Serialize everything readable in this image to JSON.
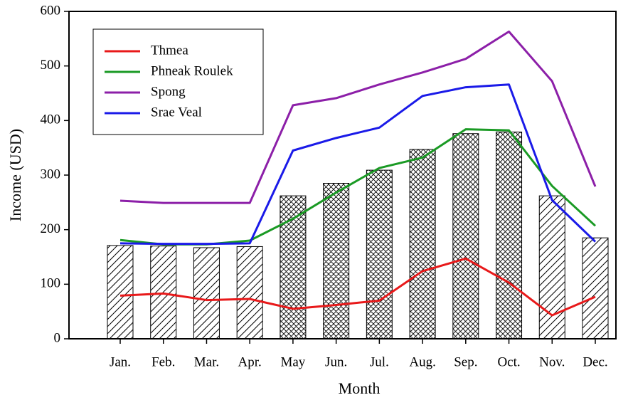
{
  "chart_data": {
    "type": "bar_line",
    "xlabel": "Month",
    "ylabel": "Income (USD)",
    "categories": [
      "Jan.",
      "Feb.",
      "Mar.",
      "Apr.",
      "May",
      "Jun.",
      "Jul.",
      "Aug.",
      "Sep.",
      "Oct.",
      "Nov.",
      "Dec."
    ],
    "bars": {
      "values": [
        171,
        170,
        167,
        169,
        262,
        285,
        309,
        347,
        376,
        379,
        262,
        185
      ],
      "hatch": [
        "diagonal",
        "diagonal",
        "diagonal",
        "diagonal",
        "cross",
        "cross",
        "cross",
        "cross",
        "cross",
        "cross",
        "diagonal",
        "diagonal"
      ]
    },
    "series": [
      {
        "name": "Thmea",
        "color": "#e8191a",
        "values": [
          79,
          83,
          71,
          73,
          55,
          62,
          70,
          124,
          147,
          103,
          43,
          77
        ]
      },
      {
        "name": "Phneak Roulek",
        "color": "#1a9a24",
        "values": [
          181,
          173,
          173,
          180,
          220,
          268,
          313,
          332,
          384,
          382,
          280,
          207
        ]
      },
      {
        "name": "Spong",
        "color": "#8c1fa8",
        "values": [
          253,
          249,
          249,
          249,
          428,
          441,
          466,
          488,
          513,
          563,
          472,
          279
        ]
      },
      {
        "name": "Srae Veal",
        "color": "#1a1ae8",
        "values": [
          175,
          174,
          174,
          175,
          345,
          368,
          387,
          445,
          461,
          466,
          254,
          178
        ]
      }
    ],
    "ylim": [
      0,
      600
    ],
    "yticks": [
      0,
      100,
      200,
      300,
      400,
      500,
      600
    ],
    "legend": "upper left"
  }
}
